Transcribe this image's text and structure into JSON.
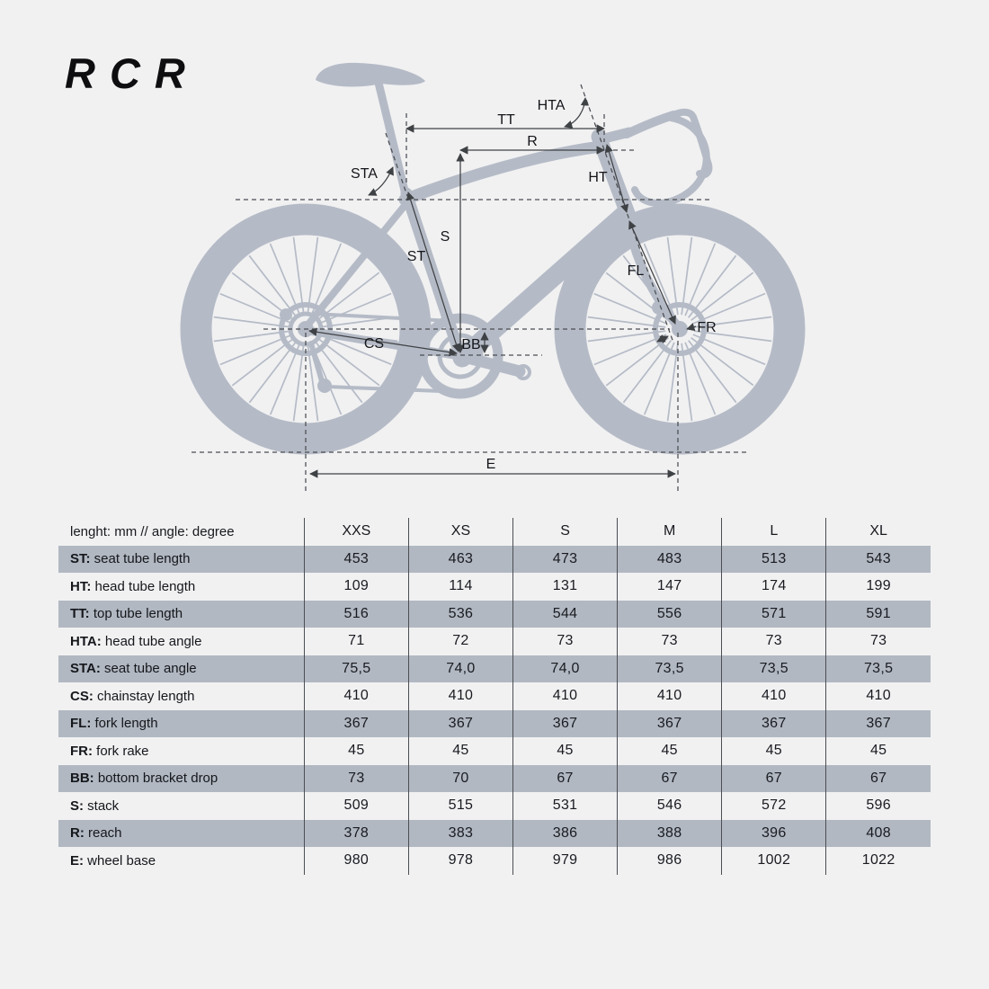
{
  "title": "RCR",
  "diagram": {
    "labels": {
      "hta": "HTA",
      "tt": "TT",
      "r": "R",
      "sta": "STA",
      "ht": "HT",
      "s": "S",
      "st": "ST",
      "fl": "FL",
      "fr": "FR",
      "bb": "BB",
      "cs": "CS",
      "e": "E"
    }
  },
  "table": {
    "unit_note": "lenght: mm // angle: degree",
    "sizes": [
      "XXS",
      "XS",
      "S",
      "M",
      "L",
      "XL"
    ],
    "rows": [
      {
        "abbr": "ST:",
        "label": "seat tube length",
        "values": [
          "453",
          "463",
          "473",
          "483",
          "513",
          "543"
        ]
      },
      {
        "abbr": "HT:",
        "label": "head tube length",
        "values": [
          "109",
          "114",
          "131",
          "147",
          "174",
          "199"
        ]
      },
      {
        "abbr": "TT:",
        "label": "top tube length",
        "values": [
          "516",
          "536",
          "544",
          "556",
          "571",
          "591"
        ]
      },
      {
        "abbr": "HTA:",
        "label": "head tube angle",
        "values": [
          "71",
          "72",
          "73",
          "73",
          "73",
          "73"
        ]
      },
      {
        "abbr": "STA:",
        "label": "seat tube angle",
        "values": [
          "75,5",
          "74,0",
          "74,0",
          "73,5",
          "73,5",
          "73,5"
        ]
      },
      {
        "abbr": "CS:",
        "label": "chainstay length",
        "values": [
          "410",
          "410",
          "410",
          "410",
          "410",
          "410"
        ]
      },
      {
        "abbr": "FL:",
        "label": "fork length",
        "values": [
          "367",
          "367",
          "367",
          "367",
          "367",
          "367"
        ]
      },
      {
        "abbr": "FR:",
        "label": "fork rake",
        "values": [
          "45",
          "45",
          "45",
          "45",
          "45",
          "45"
        ]
      },
      {
        "abbr": "BB:",
        "label": "bottom bracket drop",
        "values": [
          "73",
          "70",
          "67",
          "67",
          "67",
          "67"
        ]
      },
      {
        "abbr": "S:",
        "label": "stack",
        "values": [
          "509",
          "515",
          "531",
          "546",
          "572",
          "596"
        ]
      },
      {
        "abbr": "R:",
        "label": "reach",
        "values": [
          "378",
          "383",
          "386",
          "388",
          "396",
          "408"
        ]
      },
      {
        "abbr": "E:",
        "label": "wheel base",
        "values": [
          "980",
          "978",
          "979",
          "986",
          "1002",
          "1022"
        ]
      }
    ]
  },
  "colors": {
    "background": "#f1f1f2",
    "silhouette": "#b5bbc6",
    "table_band": "#b1b8c2",
    "dimension_line": "#3f4245",
    "text": "#16181c"
  }
}
